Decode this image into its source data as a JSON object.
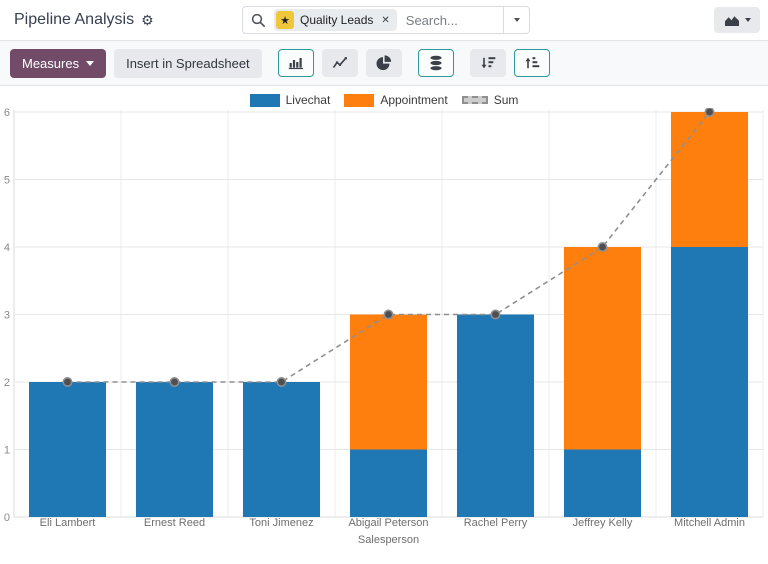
{
  "header": {
    "title": "Pipeline Analysis",
    "search": {
      "facet_label": "Quality Leads",
      "placeholder": "Search..."
    }
  },
  "toolbar": {
    "measures_label": "Measures",
    "insert_label": "Insert in Spreadsheet"
  },
  "colors": {
    "primary_button": "#714B67",
    "active_button_border": "#2a9a9d",
    "bar_blue": "#1f77b4",
    "bar_orange": "#ff7f0e",
    "sum_line": "#8f8f8f",
    "favorite_star_bg": "#efc73b"
  },
  "chart_data": {
    "type": "bar",
    "stacked": true,
    "categories": [
      "Eli Lambert",
      "Ernest Reed",
      "Toni Jimenez",
      "Abigail Peterson",
      "Rachel Perry",
      "Jeffrey Kelly",
      "Mitchell Admin"
    ],
    "series": [
      {
        "name": "Livechat",
        "color": "#1f77b4",
        "values": [
          2,
          2,
          2,
          1,
          3,
          1,
          4
        ]
      },
      {
        "name": "Appointment",
        "color": "#ff7f0e",
        "values": [
          0,
          0,
          0,
          2,
          0,
          3,
          2
        ]
      }
    ],
    "line_series": {
      "name": "Sum",
      "color": "#8f8f8f",
      "marker_fill": "#4f4f52",
      "marker_stroke": "#8f8f92",
      "values": [
        2,
        2,
        2,
        3,
        3,
        4,
        6
      ]
    },
    "title": "",
    "xlabel": "Salesperson",
    "ylabel": "",
    "ylim": [
      0,
      6
    ],
    "yticks": [
      0,
      1,
      2,
      3,
      4,
      5,
      6
    ],
    "legend_position": "top",
    "grid": true
  }
}
